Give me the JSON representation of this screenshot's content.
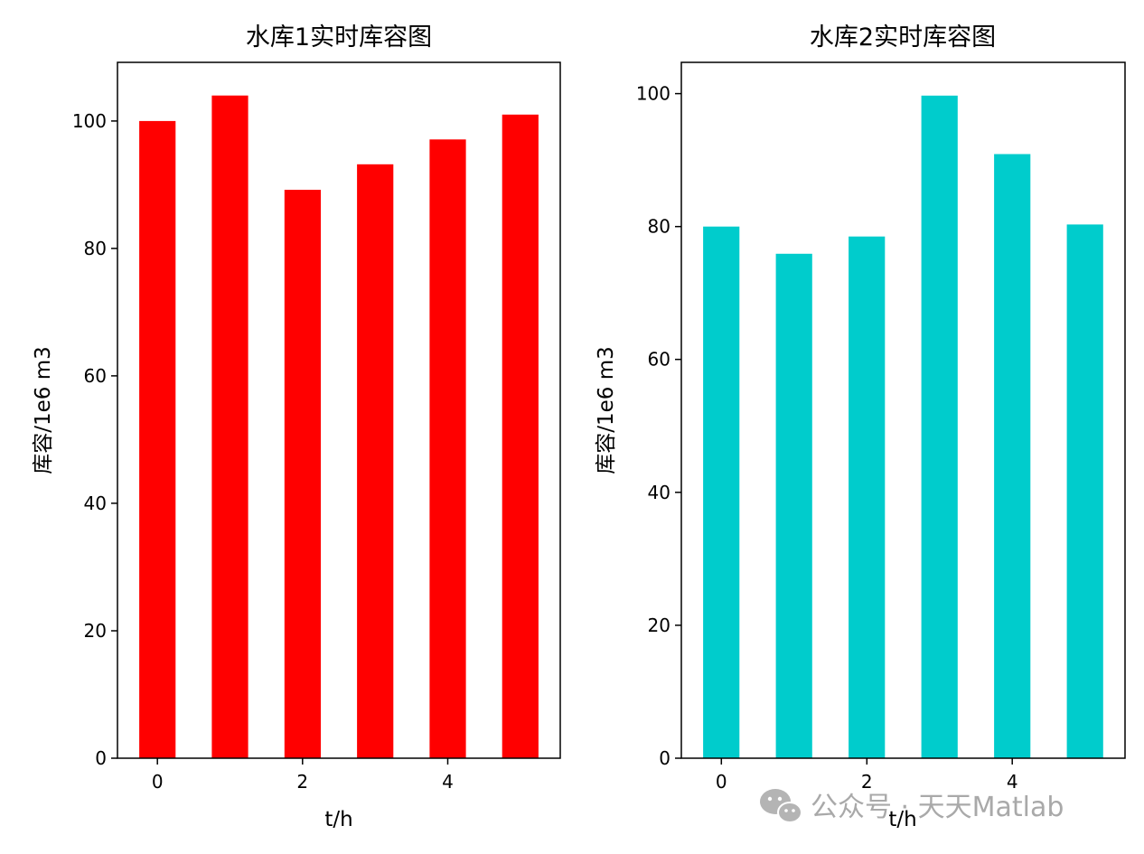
{
  "chart_data": [
    {
      "type": "bar",
      "title": "水库1实时库容图",
      "xlabel": "t/h",
      "ylabel": "库容/1e6 m3",
      "x": [
        0,
        1,
        2,
        3,
        4,
        5
      ],
      "values": [
        100,
        104,
        89.2,
        93.2,
        97.1,
        101
      ],
      "xticks": [
        0,
        2,
        4
      ],
      "yticks": [
        0,
        20,
        40,
        60,
        80,
        100
      ],
      "xlim": [
        -0.55,
        5.55
      ],
      "ylim": [
        0,
        109.2
      ],
      "color": "#ff0000",
      "grid": false
    },
    {
      "type": "bar",
      "title": "水库2实时库容图",
      "xlabel": "t/h",
      "ylabel": "库容/1e6 m3",
      "x": [
        0,
        1,
        2,
        3,
        4,
        5
      ],
      "values": [
        80,
        75.9,
        78.5,
        99.7,
        90.9,
        80.3
      ],
      "xticks": [
        0,
        2,
        4
      ],
      "yticks": [
        0,
        20,
        40,
        60,
        80,
        100
      ],
      "xlim": [
        -0.55,
        5.55
      ],
      "ylim": [
        0,
        104.7
      ],
      "color": "#00cccc",
      "grid": false
    }
  ],
  "watermark": {
    "text": "公众号 · 天天Matlab",
    "icon": "wechat-icon"
  }
}
